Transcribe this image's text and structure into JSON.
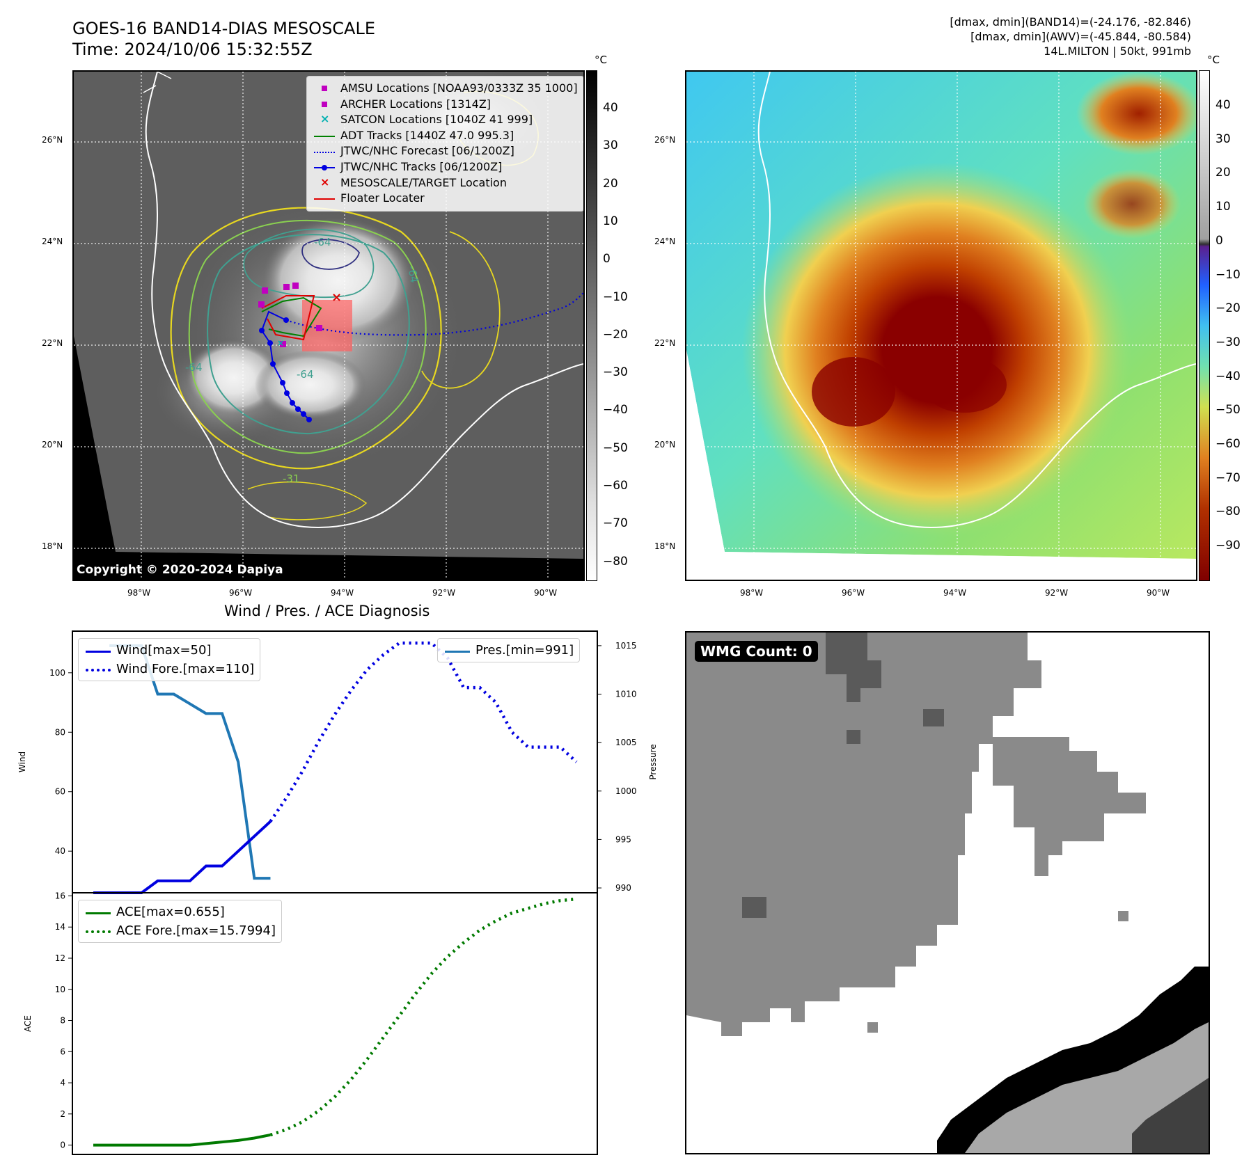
{
  "header": {
    "title_line1": "GOES-16 BAND14-DIAS MESOSCALE",
    "title_line2": "Time: 2024/10/06 15:32:55Z",
    "info_line1": "[dmax, dmin](BAND14)=(-24.176, -82.846)",
    "info_line2": "[dmax, dmin](AWV)=(-45.844, -80.584)",
    "info_line3": "14L.MILTON | 50kt, 991mb"
  },
  "ir_panel": {
    "copyright": "Copyright © 2020-2024 Dapiya",
    "lat_labels": [
      "26°N",
      "24°N",
      "22°N",
      "20°N",
      "18°N"
    ],
    "lon_labels": [
      "98°W",
      "96°W",
      "94°W",
      "92°W",
      "90°W"
    ],
    "colorbar_unit": "°C",
    "colorbar_ticks": [
      "40",
      "30",
      "20",
      "10",
      "0",
      "−10",
      "−20",
      "−30",
      "−40",
      "−50",
      "−60",
      "−70",
      "−80"
    ],
    "contour_labels": [
      "-64",
      "-64",
      "-64",
      "-64",
      "-31"
    ],
    "legend": [
      {
        "label": "AMSU Locations [NOAA93/0333Z 35 1000]",
        "symbol": "square",
        "color": "#c000c0"
      },
      {
        "label": "ARCHER Locations [1314Z]",
        "symbol": "square",
        "color": "#c000c0"
      },
      {
        "label": "SATCON Locations [1040Z 41 999]",
        "symbol": "x",
        "color": "#00b0b0"
      },
      {
        "label": "ADT Tracks [1440Z 47.0 995.3]",
        "symbol": "line",
        "color": "#008000"
      },
      {
        "label": "JTWC/NHC Forecast [06/1200Z]",
        "symbol": "dotted",
        "color": "#0000e0"
      },
      {
        "label": "JTWC/NHC Tracks [06/1200Z]",
        "symbol": "dotline",
        "color": "#0000e0"
      },
      {
        "label": "MESOSCALE/TARGET Location",
        "symbol": "x",
        "color": "#e00000"
      },
      {
        "label": "Floater Locater",
        "symbol": "line",
        "color": "#e00000"
      }
    ]
  },
  "awv_panel": {
    "lat_labels": [
      "26°N",
      "24°N",
      "22°N",
      "20°N",
      "18°N"
    ],
    "lon_labels": [
      "98°W",
      "96°W",
      "94°W",
      "92°W",
      "90°W"
    ],
    "colorbar_unit": "°C",
    "colorbar_ticks": [
      "40",
      "30",
      "20",
      "10",
      "0",
      "−10",
      "−20",
      "−30",
      "−40",
      "−50",
      "−60",
      "−70",
      "−80",
      "−90"
    ]
  },
  "wmg_panel": {
    "badge": "WMG Count: 0"
  },
  "colors": {
    "wind": "#0000e0",
    "pressure": "#1f77b4",
    "ace": "#007a00"
  },
  "chart_data": [
    {
      "type": "line",
      "title": "Wind / Pres. / ACE Diagnosis",
      "ylabel": "Wind",
      "y2label": "Pressure",
      "ylim": [
        26,
        114
      ],
      "y2lim": [
        989.5,
        1016.5
      ],
      "yticks": [
        40,
        60,
        80,
        100
      ],
      "y2ticks": [
        990,
        995,
        1000,
        1005,
        1010,
        1015
      ],
      "legend_left": [
        "Wind[max=50]",
        "Wind Fore.[max=110]"
      ],
      "legend_right": [
        "Pres.[min=991]"
      ],
      "x": [
        0,
        1,
        2,
        3,
        4,
        5,
        6,
        7,
        8,
        9,
        10,
        11,
        12,
        13,
        14,
        15,
        16,
        17,
        18,
        19,
        20,
        21,
        22,
        23,
        24,
        25,
        26,
        27,
        28,
        29,
        30
      ],
      "series": [
        {
          "name": "Wind",
          "style": "solid",
          "axis": "left",
          "x": [
            0,
            1,
            2,
            3,
            4,
            5,
            6,
            7,
            8,
            9,
            10,
            11
          ],
          "values": [
            25,
            25,
            25,
            25,
            30,
            30,
            30,
            35,
            35,
            40,
            45,
            50
          ]
        },
        {
          "name": "Wind Fore.",
          "style": "dotted",
          "axis": "left",
          "x": [
            11,
            12,
            13,
            14,
            15,
            16,
            17,
            18,
            19,
            20,
            21,
            22,
            23,
            24,
            25,
            26,
            27,
            28,
            29,
            30
          ],
          "values": [
            50,
            58,
            67,
            77,
            86,
            94,
            101,
            106,
            110,
            110,
            110,
            105,
            95,
            95,
            90,
            80,
            75,
            75,
            75,
            70
          ]
        },
        {
          "name": "Pres.",
          "style": "solid",
          "axis": "right",
          "x": [
            1,
            2,
            3,
            4,
            5,
            6,
            7,
            8,
            9,
            10,
            11
          ],
          "values": [
            1015,
            1015,
            1015,
            1010,
            1010,
            1009,
            1008,
            1008,
            1003,
            991,
            991
          ]
        }
      ]
    },
    {
      "type": "line",
      "ylabel": "ACE",
      "ylim": [
        -0.6,
        16.2
      ],
      "yticks": [
        0,
        2,
        4,
        6,
        8,
        10,
        12,
        14,
        16
      ],
      "legend": [
        "ACE[max=0.655]",
        "ACE Fore.[max=15.7994]"
      ],
      "series": [
        {
          "name": "ACE",
          "style": "solid",
          "x": [
            0,
            1,
            2,
            3,
            4,
            5,
            6,
            7,
            8,
            9,
            10,
            11
          ],
          "values": [
            0,
            0,
            0,
            0,
            0,
            0,
            0,
            0.1,
            0.2,
            0.3,
            0.45,
            0.655
          ]
        },
        {
          "name": "ACE Fore.",
          "style": "dotted",
          "x": [
            11,
            12,
            13,
            14,
            15,
            16,
            17,
            18,
            19,
            20,
            21,
            22,
            23,
            24,
            25,
            26,
            27,
            28,
            29,
            30
          ],
          "values": [
            0.655,
            1.0,
            1.5,
            2.2,
            3.1,
            4.2,
            5.5,
            6.9,
            8.3,
            9.7,
            11.0,
            12.1,
            13.0,
            13.8,
            14.4,
            14.9,
            15.2,
            15.5,
            15.7,
            15.7994
          ]
        }
      ]
    }
  ]
}
